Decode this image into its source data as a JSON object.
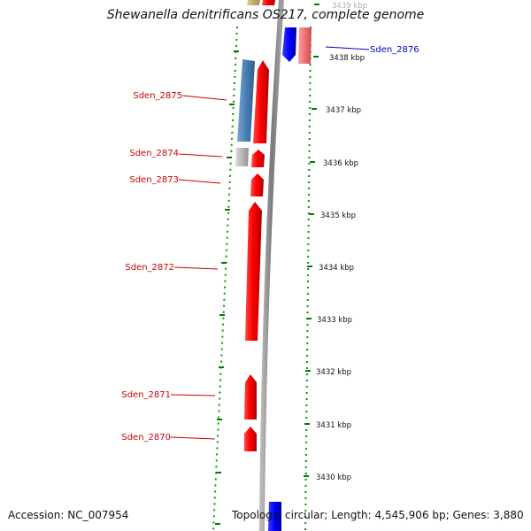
{
  "title": "Shewanella denitrificans OS217, complete genome",
  "accession": "Accession: NC_007954",
  "topology": "Topology: circular; Length: 4,545,906 bp; Genes: 3,880",
  "colors": {
    "forward_gene": "#ff0000",
    "other_gene_blue": "#0000ff",
    "steelblue_gene": "#4a7fb5",
    "pink_gene": "#f07070",
    "gray_gene": "#b8b8b8",
    "olive_gene": "#c8b070",
    "tick_green": "#007a00",
    "red_label": "#cc0000",
    "blue_label": "#0000cc",
    "backbone": "#8a8a8a"
  },
  "kbp_ticks": [
    {
      "label": "3439 kbp",
      "kbp": 3439,
      "faded": true
    },
    {
      "label": "3438 kbp",
      "kbp": 3438
    },
    {
      "label": "3437 kbp",
      "kbp": 3437
    },
    {
      "label": "3436 kbp",
      "kbp": 3436
    },
    {
      "label": "3435 kbp",
      "kbp": 3435
    },
    {
      "label": "3434 kbp",
      "kbp": 3434
    },
    {
      "label": "3433 kbp",
      "kbp": 3433
    },
    {
      "label": "3432 kbp",
      "kbp": 3432
    },
    {
      "label": "3431 kbp",
      "kbp": 3431
    },
    {
      "label": "3430 kbp",
      "kbp": 3430
    }
  ],
  "gene_labels": [
    {
      "name": "Sden_2876",
      "side": "right",
      "color": "blue"
    },
    {
      "name": "Sden_2875",
      "side": "left",
      "color": "red"
    },
    {
      "name": "Sden_2874",
      "side": "left",
      "color": "red"
    },
    {
      "name": "Sden_2873",
      "side": "left",
      "color": "red"
    },
    {
      "name": "Sden_2872",
      "side": "left",
      "color": "red"
    },
    {
      "name": "Sden_2871",
      "side": "left",
      "color": "red"
    },
    {
      "name": "Sden_2870",
      "side": "left",
      "color": "red"
    }
  ]
}
